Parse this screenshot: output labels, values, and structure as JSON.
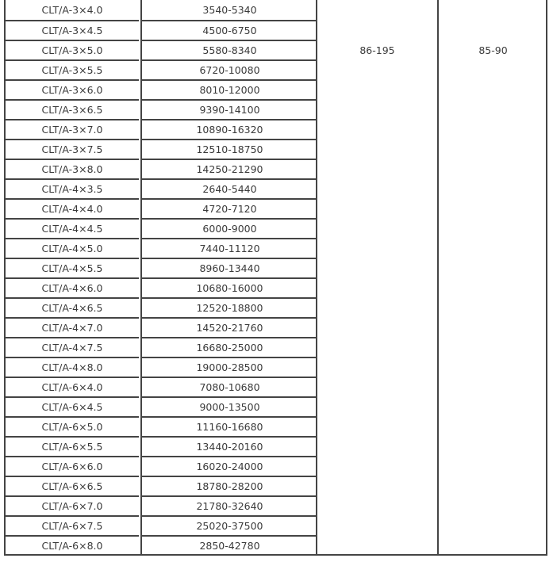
{
  "table": {
    "rows": [
      [
        "CLT/A-3×4.0",
        "3540-5340"
      ],
      [
        "CLT/A-3×4.5",
        "4500-6750"
      ],
      [
        "CLT/A-3×5.0",
        "5580-8340"
      ],
      [
        "CLT/A-3×5.5",
        "6720-10080"
      ],
      [
        "CLT/A-3×6.0",
        "8010-12000"
      ],
      [
        "CLT/A-3×6.5",
        "9390-14100"
      ],
      [
        "CLT/A-3×7.0",
        "10890-16320"
      ],
      [
        "CLT/A-3×7.5",
        "12510-18750"
      ],
      [
        "CLT/A-3×8.0",
        "14250-21290"
      ],
      [
        "CLT/A-4×3.5",
        "2640-5440"
      ],
      [
        "CLT/A-4×4.0",
        "4720-7120"
      ],
      [
        "CLT/A-4×4.5",
        "6000-9000"
      ],
      [
        "CLT/A-4×5.0",
        "7440-11120"
      ],
      [
        "CLT/A-4×5.5",
        "8960-13440"
      ],
      [
        "CLT/A-4×6.0",
        "10680-16000"
      ],
      [
        "CLT/A-4×6.5",
        "12520-18800"
      ],
      [
        "CLT/A-4×7.0",
        "14520-21760"
      ],
      [
        "CLT/A-4×7.5",
        "16680-25000"
      ],
      [
        "CLT/A-4×8.0",
        "19000-28500"
      ],
      [
        "CLT/A-6×4.0",
        "7080-10680"
      ],
      [
        "CLT/A-6×4.5",
        "9000-13500"
      ],
      [
        "CLT/A-6×5.0",
        "11160-16680"
      ],
      [
        "CLT/A-6×5.5",
        "13440-20160"
      ],
      [
        "CLT/A-6×6.0",
        "16020-24000"
      ],
      [
        "CLT/A-6×6.5",
        "18780-28200"
      ],
      [
        "CLT/A-6×7.0",
        "21780-32640"
      ],
      [
        "CLT/A-6×7.5",
        "25020-37500"
      ],
      [
        "CLT/A-6×8.0",
        "2850-42780"
      ]
    ],
    "merged_col3": "86-195",
    "merged_col4": "85-90"
  }
}
